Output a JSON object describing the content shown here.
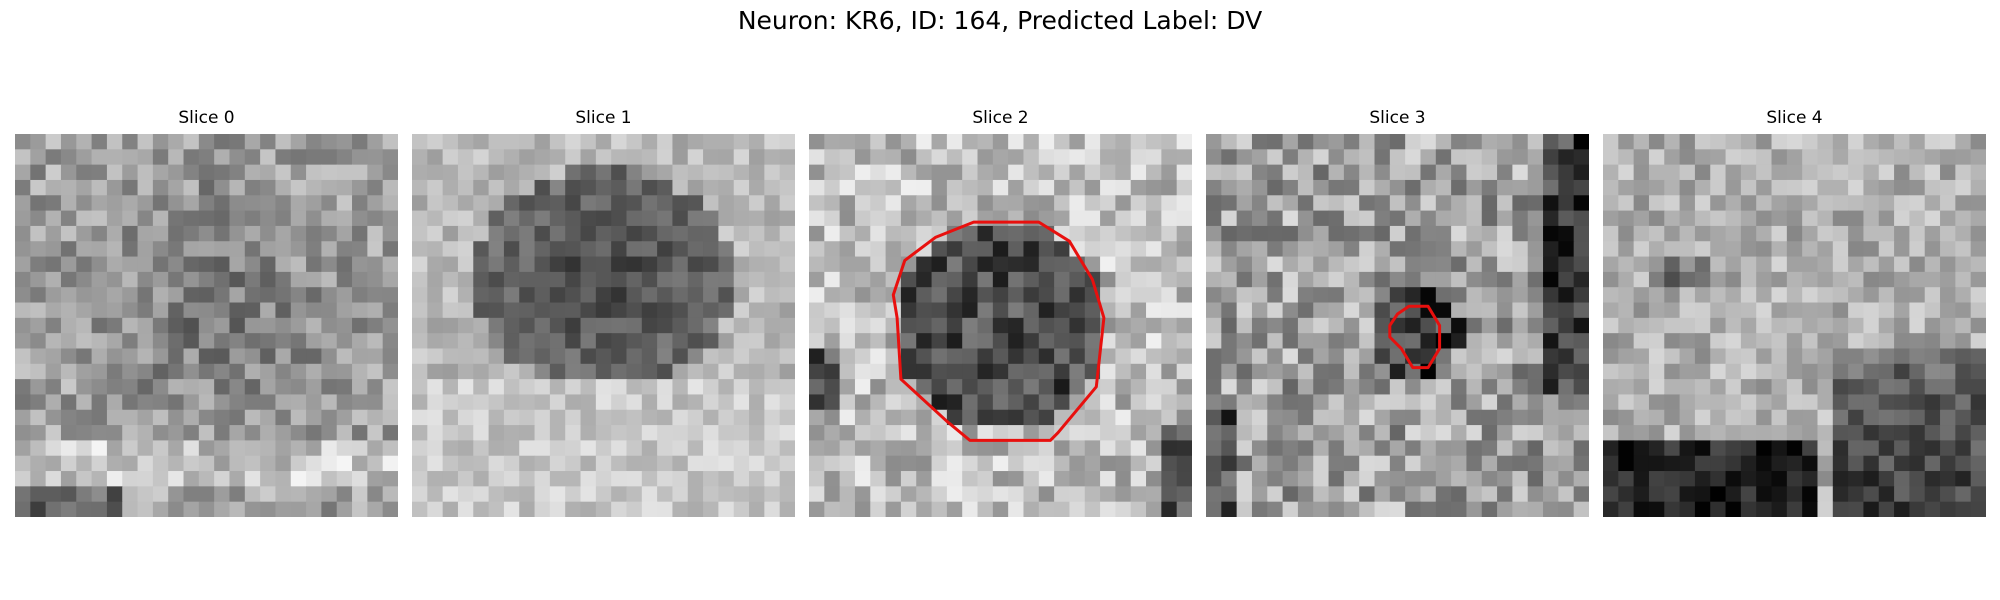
{
  "figure": {
    "title": "Neuron: KR6, ID: 164, Predicted Label: DV"
  },
  "panels": [
    {
      "title": "Slice 0",
      "has_contour": false
    },
    {
      "title": "Slice 1",
      "has_contour": false
    },
    {
      "title": "Slice 2",
      "has_contour": true
    },
    {
      "title": "Slice 3",
      "has_contour": true
    },
    {
      "title": "Slice 4",
      "has_contour": false
    }
  ],
  "style": {
    "contour_color": "#e8100e",
    "colormap": "grayscale"
  }
}
